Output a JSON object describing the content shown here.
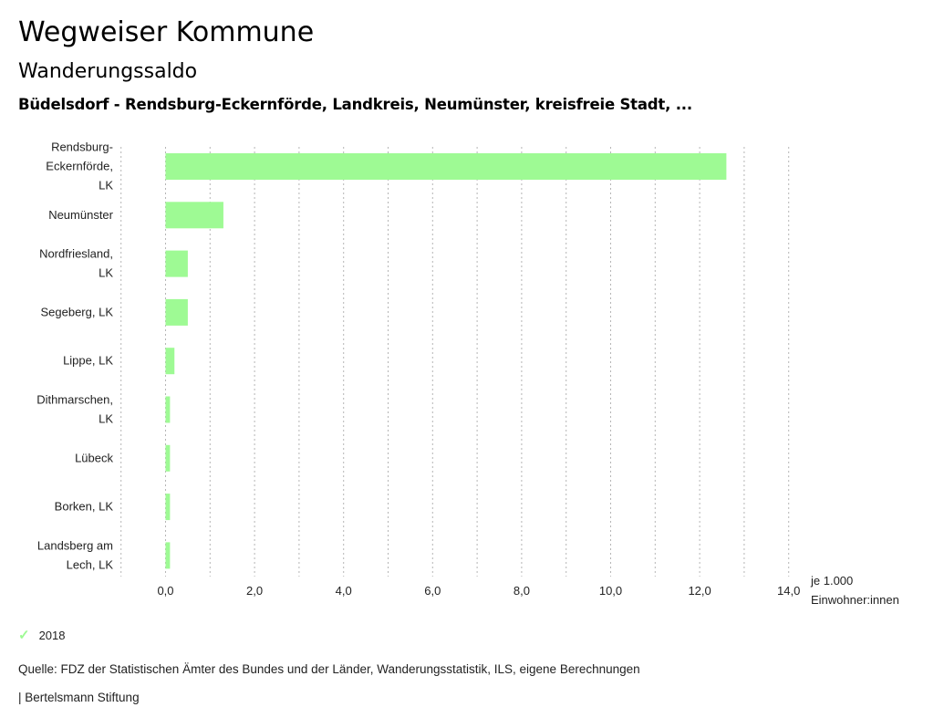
{
  "header": {
    "title": "Wegweiser Kommune",
    "subtitle": "Wanderungssaldo",
    "region": "Büdelsdorf - Rendsburg-Eckernförde, Landkreis, Neumünster, kreisfreie Stadt, ..."
  },
  "chart_data": {
    "type": "bar",
    "orientation": "horizontal",
    "categories": [
      [
        "Rendsburg-",
        "Eckernförde,",
        "LK"
      ],
      [
        "Neumünster"
      ],
      [
        "Nordfriesland,",
        "LK"
      ],
      [
        "Segeberg, LK"
      ],
      [
        "Lippe, LK"
      ],
      [
        "Dithmarschen,",
        "LK"
      ],
      [
        "Lübeck"
      ],
      [
        "Borken, LK"
      ],
      [
        "Landsberg am",
        "Lech, LK"
      ]
    ],
    "series": [
      {
        "name": "2018",
        "color": "#9efa94",
        "values": [
          12.6,
          1.3,
          0.5,
          0.5,
          0.2,
          0.1,
          0.1,
          0.1,
          0.1
        ]
      }
    ],
    "xlim": [
      -1,
      14
    ],
    "grid_step": 1,
    "ticks": [
      0,
      2,
      4,
      6,
      8,
      10,
      12,
      14
    ],
    "tick_labels": [
      "0,0",
      "2,0",
      "4,0",
      "6,0",
      "8,0",
      "10,0",
      "12,0",
      "14,0"
    ],
    "xlabel": [
      "je 1.000",
      "Einwohner:innen"
    ],
    "grid": true,
    "legend_position": "bottom-left"
  },
  "legend": {
    "label": "2018",
    "icon": "check-icon"
  },
  "footer": {
    "source": "Quelle: FDZ der Statistischen Ämter des Bundes und der Länder, Wanderungsstatistik, ILS, eigene Berechnungen",
    "brand": "| Bertelsmann Stiftung"
  }
}
